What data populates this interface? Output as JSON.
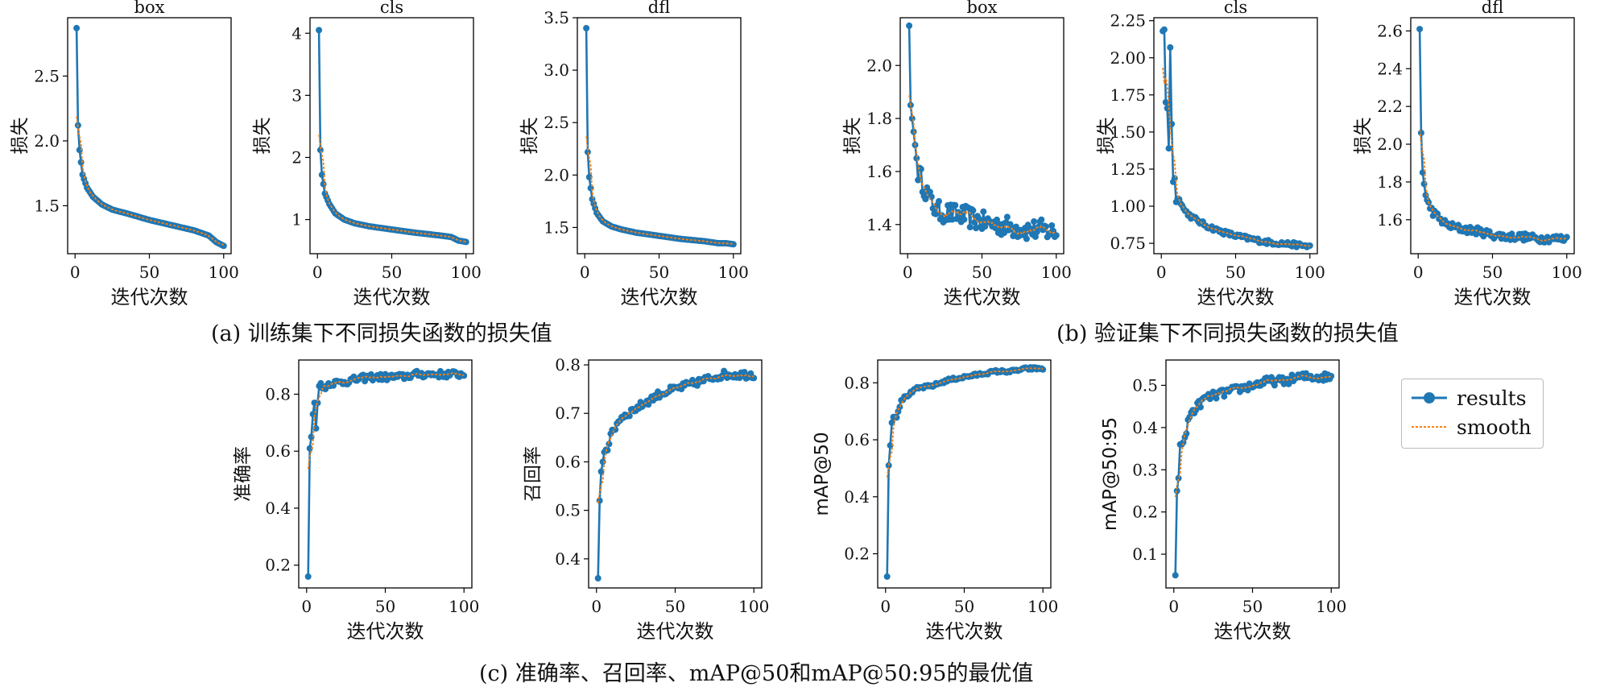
{
  "captions": {
    "a": "(a) 训练集下不同损失函数的损失值",
    "b": "(b) 验证集下不同损失函数的损失值",
    "c": "(c) 准确率、召回率、mAP@50和mAP@50:95的最优值"
  },
  "legend": {
    "results": "results",
    "smooth": "smooth"
  },
  "colors": {
    "results": "#1f77b4",
    "smooth": "#ff7f0e"
  },
  "chart_data": [
    {
      "type": "line",
      "title": "box",
      "xlabel": "迭代次数",
      "ylabel": "损失",
      "xlim": [
        -5,
        105
      ],
      "ylim": [
        1.13,
        2.95
      ],
      "xticks": [
        "0",
        "50",
        "100"
      ],
      "yticks": [
        "1.5",
        "2.0",
        "2.5"
      ],
      "x_keys": [
        1,
        2,
        3,
        5,
        8,
        12,
        18,
        25,
        35,
        50,
        65,
        80,
        90,
        95,
        100
      ],
      "y_keys": [
        2.87,
        2.12,
        1.93,
        1.74,
        1.64,
        1.57,
        1.51,
        1.47,
        1.44,
        1.39,
        1.35,
        1.31,
        1.27,
        1.22,
        1.19
      ],
      "series": [
        {
          "name": "results"
        },
        {
          "name": "smooth"
        }
      ]
    },
    {
      "type": "line",
      "title": "cls",
      "xlabel": "迭代次数",
      "ylabel": "损失",
      "xlim": [
        -5,
        105
      ],
      "ylim": [
        0.45,
        4.25
      ],
      "xticks": [
        "0",
        "50",
        "100"
      ],
      "yticks": [
        "1",
        "2",
        "3",
        "4"
      ],
      "x_keys": [
        1,
        2,
        3,
        5,
        8,
        12,
        18,
        25,
        35,
        50,
        65,
        80,
        90,
        95,
        100
      ],
      "y_keys": [
        4.05,
        2.12,
        1.72,
        1.42,
        1.25,
        1.1,
        1.0,
        0.94,
        0.89,
        0.84,
        0.79,
        0.75,
        0.72,
        0.66,
        0.64
      ],
      "series": [
        {
          "name": "results"
        },
        {
          "name": "smooth"
        }
      ]
    },
    {
      "type": "line",
      "title": "dfl",
      "xlabel": "迭代次数",
      "ylabel": "损失",
      "xlim": [
        -5,
        105
      ],
      "ylim": [
        1.25,
        3.5
      ],
      "xticks": [
        "0",
        "50",
        "100"
      ],
      "yticks": [
        "1.5",
        "2.0",
        "2.5",
        "3.0",
        "3.5"
      ],
      "x_keys": [
        1,
        2,
        3,
        5,
        8,
        12,
        18,
        25,
        35,
        50,
        65,
        80,
        90,
        95,
        100
      ],
      "y_keys": [
        3.4,
        2.22,
        1.98,
        1.77,
        1.64,
        1.56,
        1.51,
        1.48,
        1.45,
        1.42,
        1.39,
        1.37,
        1.35,
        1.35,
        1.34
      ],
      "series": [
        {
          "name": "results"
        },
        {
          "name": "smooth"
        }
      ]
    },
    {
      "type": "line",
      "title": "box",
      "xlabel": "迭代次数",
      "ylabel": "损失",
      "xlim": [
        -5,
        105
      ],
      "ylim": [
        1.29,
        2.18
      ],
      "xticks": [
        "0",
        "50",
        "100"
      ],
      "yticks": [
        "1.4",
        "1.6",
        "1.8",
        "2.0"
      ],
      "x_keys": [
        1,
        2,
        3,
        5,
        7,
        10,
        15,
        20,
        30,
        40,
        50,
        60,
        70,
        80,
        90,
        100
      ],
      "y_keys": [
        2.15,
        1.85,
        1.8,
        1.7,
        1.6,
        1.56,
        1.49,
        1.45,
        1.44,
        1.43,
        1.41,
        1.4,
        1.39,
        1.38,
        1.38,
        1.37
      ],
      "noise": 0.04,
      "series": [
        {
          "name": "results"
        },
        {
          "name": "smooth"
        }
      ]
    },
    {
      "type": "line",
      "title": "cls",
      "xlabel": "迭代次数",
      "ylabel": "损失",
      "xlim": [
        -5,
        105
      ],
      "ylim": [
        0.68,
        2.27
      ],
      "xticks": [
        "0",
        "50",
        "100"
      ],
      "yticks": [
        "0.75",
        "1.00",
        "1.25",
        "1.50",
        "1.75",
        "2.00",
        "2.25"
      ],
      "x_keys": [
        1,
        2,
        3,
        4,
        5,
        6,
        7,
        8,
        9,
        10,
        12,
        15,
        20,
        30,
        40,
        50,
        60,
        70,
        80,
        90,
        100
      ],
      "y_keys": [
        2.18,
        2.19,
        1.7,
        1.66,
        1.39,
        2.07,
        1.56,
        1.16,
        1.2,
        1.03,
        1.06,
        0.98,
        0.93,
        0.87,
        0.83,
        0.8,
        0.78,
        0.76,
        0.75,
        0.74,
        0.73
      ],
      "noise": 0.015,
      "series": [
        {
          "name": "results"
        },
        {
          "name": "smooth"
        }
      ]
    },
    {
      "type": "line",
      "title": "dfl",
      "xlabel": "迭代次数",
      "ylabel": "损失",
      "xlim": [
        -5,
        105
      ],
      "ylim": [
        1.42,
        2.67
      ],
      "xticks": [
        "0",
        "50",
        "100"
      ],
      "yticks": [
        "1.6",
        "1.8",
        "2.0",
        "2.2",
        "2.4",
        "2.6"
      ],
      "x_keys": [
        1,
        2,
        3,
        5,
        7,
        10,
        15,
        20,
        30,
        40,
        50,
        60,
        70,
        80,
        90,
        100
      ],
      "y_keys": [
        2.61,
        2.06,
        1.85,
        1.73,
        1.68,
        1.64,
        1.6,
        1.57,
        1.55,
        1.54,
        1.52,
        1.51,
        1.51,
        1.5,
        1.5,
        1.5
      ],
      "noise": 0.02,
      "series": [
        {
          "name": "results"
        },
        {
          "name": "smooth"
        }
      ]
    },
    {
      "type": "line",
      "title": "",
      "xlabel": "迭代次数",
      "ylabel": "准确率",
      "xlim": [
        -5,
        105
      ],
      "ylim": [
        0.12,
        0.92
      ],
      "xticks": [
        "0",
        "50",
        "100"
      ],
      "yticks": [
        "0.2",
        "0.4",
        "0.6",
        "0.8"
      ],
      "x_keys": [
        1,
        2,
        3,
        4,
        5,
        6,
        7,
        8,
        10,
        15,
        20,
        30,
        40,
        50,
        60,
        70,
        80,
        90,
        100
      ],
      "y_keys": [
        0.16,
        0.61,
        0.65,
        0.73,
        0.77,
        0.68,
        0.78,
        0.84,
        0.82,
        0.84,
        0.84,
        0.85,
        0.86,
        0.86,
        0.86,
        0.87,
        0.87,
        0.87,
        0.87
      ],
      "noise": 0.012,
      "series": [
        {
          "name": "results"
        },
        {
          "name": "smooth"
        }
      ]
    },
    {
      "type": "line",
      "title": "",
      "xlabel": "迭代次数",
      "ylabel": "召回率",
      "xlim": [
        -5,
        105
      ],
      "ylim": [
        0.34,
        0.81
      ],
      "xticks": [
        "0",
        "50",
        "100"
      ],
      "yticks": [
        "0.4",
        "0.5",
        "0.6",
        "0.7",
        "0.8"
      ],
      "x_keys": [
        1,
        2,
        3,
        4,
        5,
        7,
        10,
        15,
        20,
        30,
        40,
        50,
        60,
        70,
        80,
        90,
        100
      ],
      "y_keys": [
        0.36,
        0.52,
        0.58,
        0.6,
        0.62,
        0.63,
        0.66,
        0.69,
        0.7,
        0.72,
        0.74,
        0.75,
        0.76,
        0.77,
        0.78,
        0.78,
        0.78
      ],
      "noise": 0.008,
      "series": [
        {
          "name": "results"
        },
        {
          "name": "smooth"
        }
      ]
    },
    {
      "type": "line",
      "title": "",
      "xlabel": "迭代次数",
      "ylabel": "mAP@50",
      "xlim": [
        -5,
        105
      ],
      "ylim": [
        0.08,
        0.88
      ],
      "xticks": [
        "0",
        "50",
        "100"
      ],
      "yticks": [
        "0.2",
        "0.4",
        "0.6",
        "0.8"
      ],
      "x_keys": [
        1,
        2,
        3,
        4,
        5,
        7,
        10,
        15,
        20,
        30,
        40,
        50,
        60,
        70,
        80,
        90,
        100
      ],
      "y_keys": [
        0.12,
        0.51,
        0.58,
        0.66,
        0.68,
        0.68,
        0.74,
        0.76,
        0.78,
        0.79,
        0.81,
        0.82,
        0.83,
        0.84,
        0.84,
        0.85,
        0.85
      ],
      "noise": 0.005,
      "series": [
        {
          "name": "results"
        },
        {
          "name": "smooth"
        }
      ]
    },
    {
      "type": "line",
      "title": "",
      "xlabel": "迭代次数",
      "ylabel": "mAP@50:95",
      "xlim": [
        -5,
        105
      ],
      "ylim": [
        0.02,
        0.56
      ],
      "xticks": [
        "0",
        "50",
        "100"
      ],
      "yticks": [
        "0.1",
        "0.2",
        "0.3",
        "0.4",
        "0.5"
      ],
      "x_keys": [
        1,
        2,
        3,
        4,
        5,
        7,
        10,
        15,
        20,
        30,
        40,
        50,
        60,
        70,
        80,
        90,
        100
      ],
      "y_keys": [
        0.05,
        0.25,
        0.28,
        0.36,
        0.36,
        0.37,
        0.43,
        0.45,
        0.47,
        0.48,
        0.49,
        0.5,
        0.51,
        0.51,
        0.52,
        0.52,
        0.52
      ],
      "noise": 0.01,
      "series": [
        {
          "name": "results"
        },
        {
          "name": "smooth"
        }
      ]
    }
  ]
}
